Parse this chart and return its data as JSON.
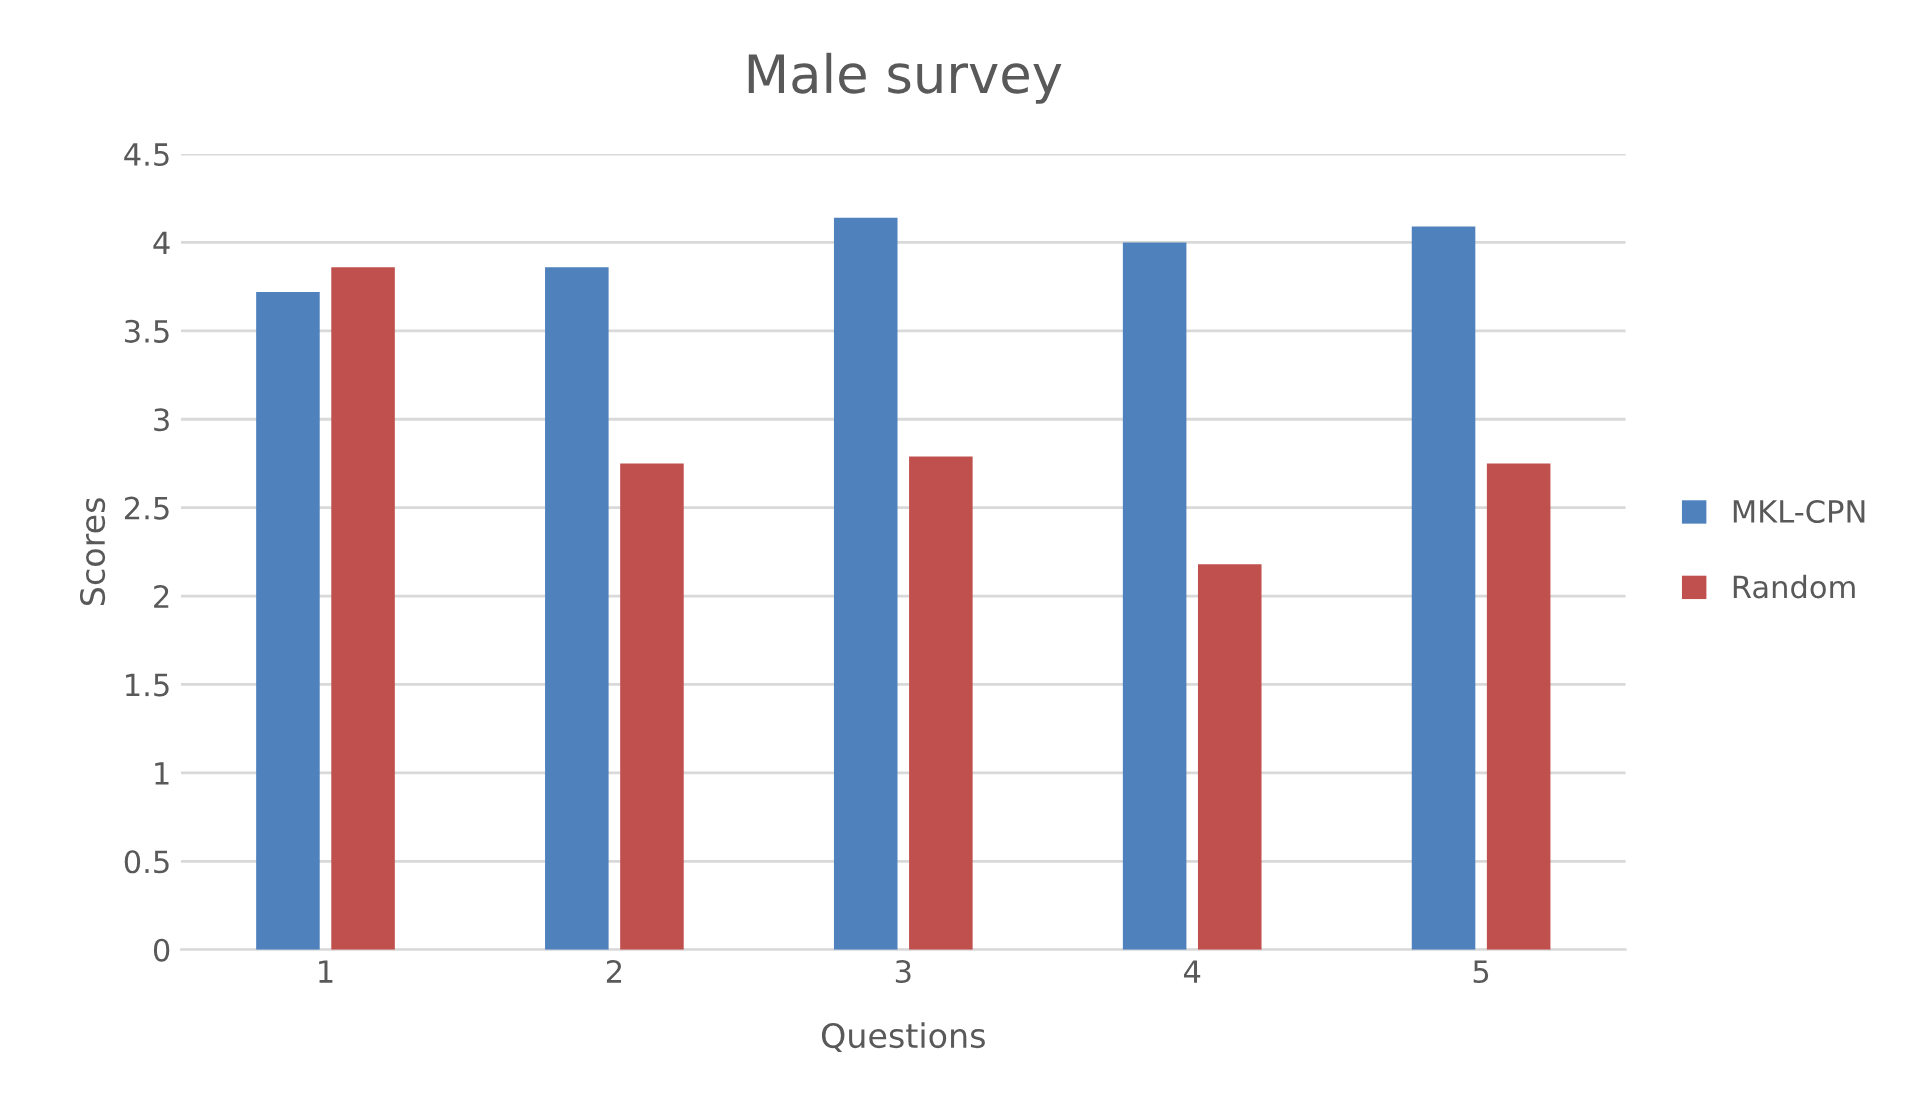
{
  "chart_data": {
    "type": "bar",
    "title": "Male survey",
    "xlabel": "Questions",
    "ylabel": "Scores",
    "categories": [
      "1",
      "2",
      "3",
      "4",
      "5"
    ],
    "series": [
      {
        "name": "MKL-CPN",
        "color": "#4f81bd",
        "values": [
          3.72,
          3.86,
          4.14,
          4.0,
          4.09
        ]
      },
      {
        "name": "Random",
        "color": "#c0504d",
        "values": [
          3.86,
          2.75,
          2.79,
          2.18,
          2.75
        ]
      }
    ],
    "ylim": [
      0,
      4.5
    ],
    "yticks": [
      0,
      0.5,
      1,
      1.5,
      2,
      2.5,
      3,
      3.5,
      4,
      4.5
    ],
    "grid": "y",
    "legend": "right"
  }
}
